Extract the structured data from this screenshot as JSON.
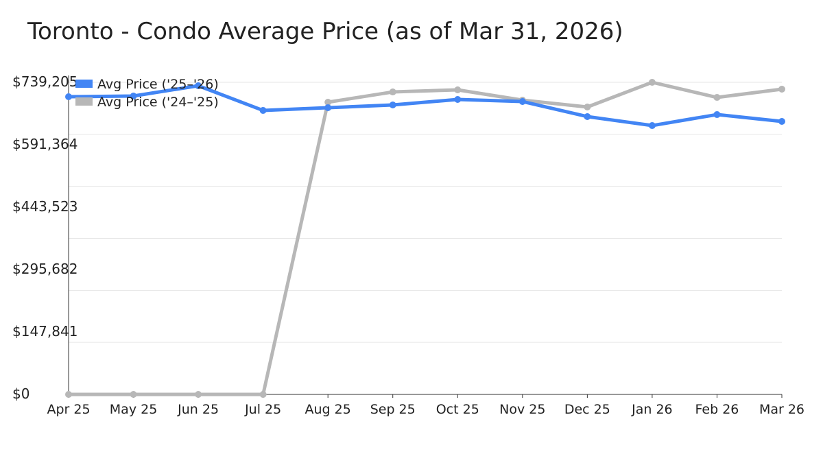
{
  "chart_data": {
    "type": "line",
    "title": "Toronto - Condo Average Price (as of Mar 31, 2026)",
    "xlabel": "",
    "ylabel": "",
    "ylim": [
      0,
      739205
    ],
    "y_ticks": [
      "$0",
      "$147,841",
      "$295,682",
      "$443,523",
      "$591,364",
      "$739,205"
    ],
    "y_tick_values": [
      0,
      147841,
      295682,
      443523,
      591364,
      739205
    ],
    "categories": [
      "Apr 25",
      "May 25",
      "Jun 25",
      "Jul 25",
      "Aug 25",
      "Sep 25",
      "Oct 25",
      "Nov 25",
      "Dec 25",
      "Jan 26",
      "Feb 26",
      "Mar 26"
    ],
    "legend_position": "top-left",
    "grid": true,
    "series": [
      {
        "name": "Avg Price ('25–'26)",
        "color": "#4285f4",
        "values": [
          705100,
          706700,
          731100,
          672600,
          679100,
          685600,
          698600,
          693700,
          658000,
          636800,
          662800,
          646600
        ]
      },
      {
        "name": "Avg Price ('24–'25)",
        "color": "#b7b7b7",
        "values": [
          0,
          0,
          0,
          0,
          692100,
          716400,
          721300,
          697000,
          680700,
          739205,
          703400,
          723000
        ]
      }
    ]
  }
}
